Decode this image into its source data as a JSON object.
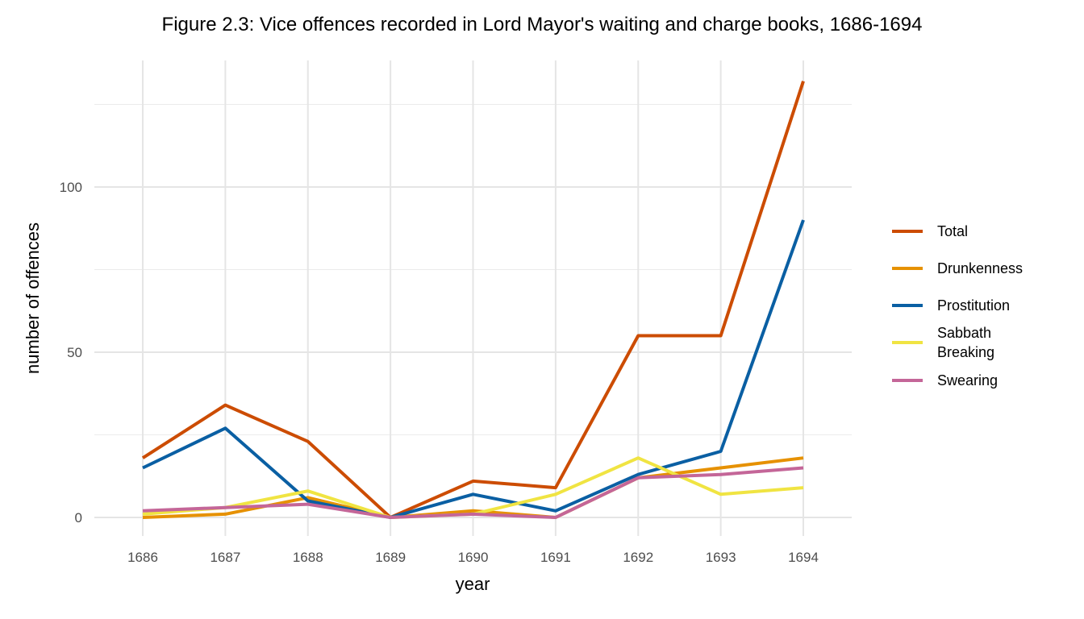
{
  "chart_data": {
    "type": "line",
    "title": "Figure 2.3: Vice offences recorded in Lord Mayor's waiting and charge books, 1686-1694",
    "xlabel": "year",
    "ylabel": "number of offences",
    "x": [
      1686,
      1687,
      1688,
      1689,
      1690,
      1691,
      1692,
      1693,
      1694
    ],
    "x_tick_labels": [
      "1686",
      "1687",
      "1688",
      "1689",
      "1690",
      "1691",
      "1692",
      "1693",
      "1694"
    ],
    "y_ticks": [
      0,
      50,
      100
    ],
    "y_tick_labels": [
      "0",
      "50",
      "100"
    ],
    "ylim": [
      -5.5,
      138
    ],
    "grid": true,
    "legend_position": "right",
    "series": [
      {
        "name": "Total",
        "color": "#CC4C02",
        "values": [
          18,
          34,
          23,
          0,
          11,
          9,
          55,
          55,
          132
        ]
      },
      {
        "name": "Drunkenness",
        "color": "#E69100",
        "values": [
          0,
          1,
          6,
          0,
          2,
          0,
          12,
          15,
          18
        ]
      },
      {
        "name": "Prostitution",
        "color": "#0A5FA3",
        "values": [
          15,
          27,
          5,
          0,
          7,
          2,
          13,
          20,
          90
        ]
      },
      {
        "name": "Sabbath Breaking",
        "legend_lines": [
          "Sabbath",
          "Breaking"
        ],
        "color": "#F0E442",
        "values": [
          1,
          3,
          8,
          0,
          1,
          7,
          18,
          7,
          9
        ]
      },
      {
        "name": "Swearing",
        "color": "#C46698",
        "values": [
          2,
          3,
          4,
          0,
          1,
          0,
          12,
          13,
          15
        ]
      }
    ]
  }
}
